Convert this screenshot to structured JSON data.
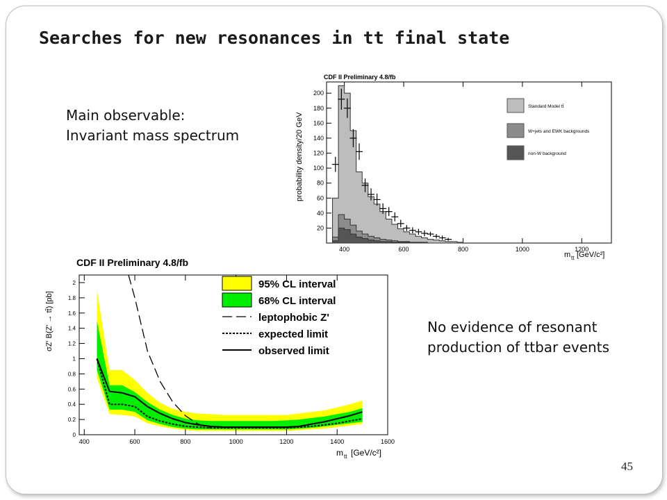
{
  "slide": {
    "title": "Searches for new resonances in tt final state",
    "observable_line1": "Main observable:",
    "observable_line2": "Invariant mass spectrum",
    "conclusion_line1": "No evidence of resonant",
    "conclusion_line2": "production of ttbar events",
    "page_number": "45"
  },
  "chart_data": [
    {
      "type": "area",
      "title": "CDF II Preliminary 4.8/fb",
      "ylabel": "probability density/20 GeV",
      "xlabel_main": "m",
      "xlabel_sub": "tt",
      "xlabel_unit": "[GeV/c²]",
      "xlim": [
        340,
        1300
      ],
      "ylim": [
        0,
        215
      ],
      "xticks": [
        400,
        600,
        800,
        1000,
        1200
      ],
      "yticks": [
        20,
        40,
        60,
        80,
        100,
        120,
        140,
        160,
        180,
        200
      ],
      "legend_position": "right",
      "legend": [
        {
          "name": "Standard Model tt̄",
          "color": "#bdbdbd"
        },
        {
          "name": "W+jets and EWK backgrounds",
          "color": "#8c8c8c"
        },
        {
          "name": "non-W background",
          "color": "#555555"
        }
      ],
      "bin_edges": [
        360,
        380,
        400,
        420,
        440,
        460,
        480,
        500,
        520,
        540,
        560,
        580,
        600,
        620,
        640,
        660,
        680,
        700,
        720,
        740,
        760,
        780,
        800
      ],
      "stack_total": [
        60,
        210,
        200,
        150,
        95,
        80,
        62,
        52,
        42,
        32,
        25,
        19,
        15,
        12,
        9,
        7,
        5,
        4,
        3,
        2,
        2,
        1
      ],
      "stack_wjets": [
        8,
        38,
        32,
        24,
        16,
        12,
        9,
        7,
        5,
        4,
        3,
        2,
        2,
        1,
        1,
        1,
        0,
        0,
        0,
        0,
        0,
        0
      ],
      "stack_nonw": [
        3,
        20,
        18,
        12,
        8,
        6,
        4,
        3,
        2,
        2,
        1,
        1,
        1,
        0,
        0,
        0,
        0,
        0,
        0,
        0,
        0,
        0
      ],
      "data_x": [
        370,
        390,
        410,
        430,
        450,
        470,
        490,
        510,
        530,
        550,
        570,
        590,
        610,
        630,
        650,
        670,
        690,
        710,
        730,
        750
      ],
      "data_y": [
        105,
        192,
        180,
        140,
        122,
        77,
        65,
        58,
        46,
        42,
        35,
        26,
        20,
        17,
        15,
        13,
        12,
        9,
        7,
        5
      ],
      "data_err": [
        10,
        14,
        13,
        12,
        11,
        9,
        8,
        8,
        7,
        6,
        6,
        5,
        4,
        4,
        4,
        4,
        3,
        3,
        3,
        2
      ]
    },
    {
      "type": "line",
      "title": "CDF II Preliminary 4.8/fb",
      "ylabel": "σZ' B(Z' → tt̄) [pb]",
      "xlabel_main": "m",
      "xlabel_sub": "tt",
      "xlabel_unit": "[GeV/c²]",
      "xlim": [
        380,
        1600
      ],
      "ylim": [
        0,
        2.1
      ],
      "xticks": [
        400,
        600,
        800,
        1000,
        1200,
        1400,
        1600
      ],
      "yticks": [
        0,
        0.2,
        0.4,
        0.6,
        0.8,
        1,
        1.2,
        1.4,
        1.6,
        1.8,
        2
      ],
      "legend_position": "top-right",
      "legend": [
        {
          "name": "95% CL interval",
          "color": "#ffff00"
        },
        {
          "name": "68% CL interval",
          "color": "#00ee00"
        },
        {
          "name": "leptophobic Z'",
          "color": "#000000"
        },
        {
          "name": "expected limit",
          "color": "#000000"
        },
        {
          "name": "observed limit",
          "color": "#000000"
        }
      ],
      "x": [
        450,
        500,
        550,
        600,
        650,
        700,
        750,
        800,
        850,
        900,
        950,
        1000,
        1050,
        1100,
        1150,
        1200,
        1250,
        1300,
        1350,
        1400,
        1450,
        1500
      ],
      "band95_low": [
        0.75,
        0.27,
        0.26,
        0.24,
        0.15,
        0.11,
        0.08,
        0.06,
        0.05,
        0.05,
        0.05,
        0.05,
        0.05,
        0.05,
        0.05,
        0.05,
        0.06,
        0.07,
        0.08,
        0.1,
        0.12,
        0.14
      ],
      "band95_high": [
        1.9,
        0.85,
        0.85,
        0.72,
        0.55,
        0.42,
        0.34,
        0.3,
        0.28,
        0.27,
        0.26,
        0.26,
        0.26,
        0.26,
        0.26,
        0.26,
        0.28,
        0.3,
        0.32,
        0.36,
        0.4,
        0.45
      ],
      "band68_low": [
        0.85,
        0.33,
        0.33,
        0.3,
        0.19,
        0.14,
        0.1,
        0.08,
        0.07,
        0.07,
        0.07,
        0.07,
        0.07,
        0.07,
        0.07,
        0.07,
        0.08,
        0.09,
        0.11,
        0.13,
        0.15,
        0.17
      ],
      "band68_high": [
        1.5,
        0.65,
        0.65,
        0.56,
        0.43,
        0.33,
        0.26,
        0.21,
        0.19,
        0.18,
        0.18,
        0.18,
        0.18,
        0.18,
        0.18,
        0.19,
        0.2,
        0.22,
        0.24,
        0.27,
        0.3,
        0.35
      ],
      "expected": [
        1.0,
        0.4,
        0.4,
        0.37,
        0.24,
        0.18,
        0.14,
        0.11,
        0.1,
        0.09,
        0.09,
        0.09,
        0.09,
        0.09,
        0.09,
        0.09,
        0.1,
        0.11,
        0.13,
        0.15,
        0.18,
        0.21
      ],
      "observed": [
        1.0,
        0.57,
        0.55,
        0.5,
        0.37,
        0.28,
        0.21,
        0.16,
        0.13,
        0.11,
        0.1,
        0.1,
        0.1,
        0.1,
        0.1,
        0.1,
        0.11,
        0.14,
        0.17,
        0.21,
        0.25,
        0.3
      ],
      "leptophobic_x": [
        575,
        600,
        625,
        650,
        700,
        750,
        800,
        850,
        900
      ],
      "leptophobic_y": [
        2.1,
        1.8,
        1.45,
        1.1,
        0.7,
        0.43,
        0.25,
        0.14,
        0.09
      ]
    }
  ]
}
